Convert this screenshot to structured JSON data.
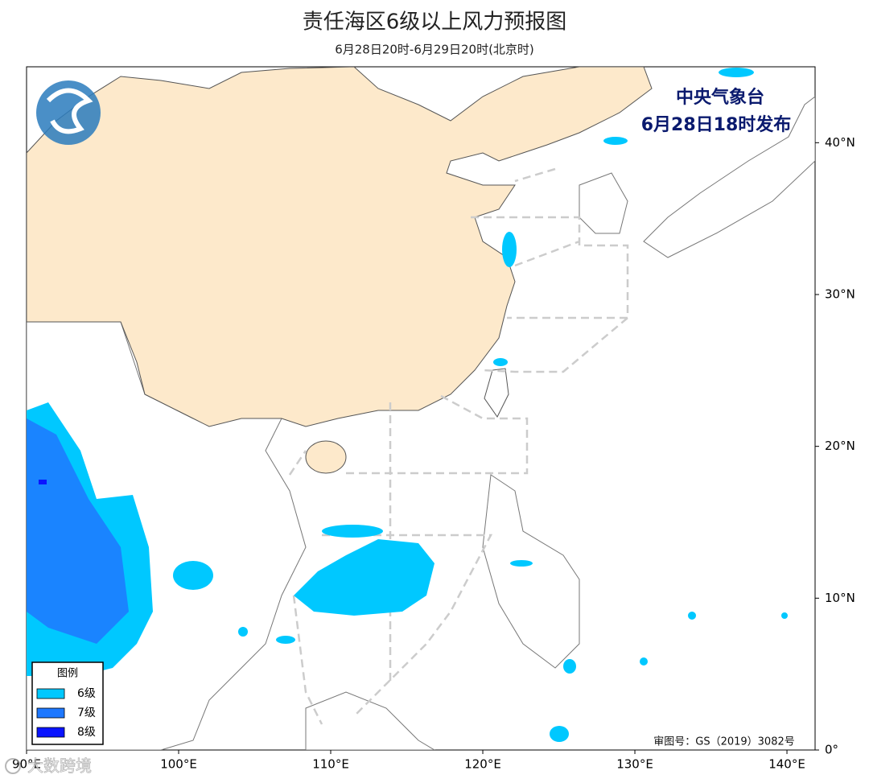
{
  "header": {
    "title": "责任海区6级以上风力预报图",
    "subtitle": "6月28日20时-6月29日20时(北京时)"
  },
  "issuer": {
    "agency": "中央气象台",
    "time": "6月28日18时发布"
  },
  "legend": {
    "title": "图例",
    "items": [
      {
        "label": "6级",
        "color": "#00c8ff"
      },
      {
        "label": "7级",
        "color": "#1e78ff"
      },
      {
        "label": "8级",
        "color": "#0a14ff"
      }
    ]
  },
  "map": {
    "xlim": [
      90,
      141.85
    ],
    "ylim": [
      0,
      45
    ],
    "xticks": [
      {
        "value": 90,
        "label": "90°E"
      },
      {
        "value": 100,
        "label": "100°E"
      },
      {
        "value": 110,
        "label": "110°E"
      },
      {
        "value": 120,
        "label": "120°E"
      },
      {
        "value": 130,
        "label": "130°E"
      },
      {
        "value": 140,
        "label": "140°E"
      }
    ],
    "yticks": [
      {
        "value": 0,
        "label": "0°"
      },
      {
        "value": 10,
        "label": "10°N"
      },
      {
        "value": 20,
        "label": "20°N"
      },
      {
        "value": 30,
        "label": "30°N"
      },
      {
        "value": 40,
        "label": "40°N"
      }
    ]
  },
  "credit": "审图号：GS（2019）3082号",
  "watermark": "大数跨境"
}
